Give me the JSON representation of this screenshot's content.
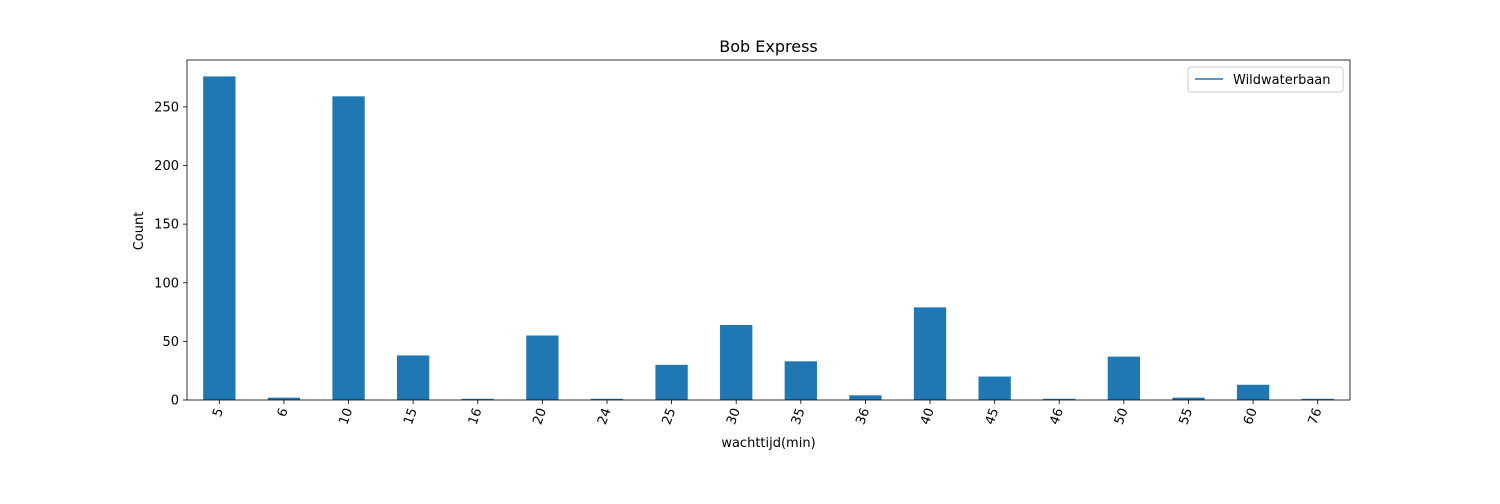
{
  "chart_data": {
    "type": "bar",
    "title": "Bob Express",
    "xlabel": "wachttijd(min)",
    "ylabel": "Count",
    "categories": [
      "5",
      "6",
      "10",
      "15",
      "16",
      "20",
      "24",
      "25",
      "30",
      "35",
      "36",
      "40",
      "45",
      "46",
      "50",
      "55",
      "60",
      "76"
    ],
    "series": [
      {
        "name": "Wildwaterbaan",
        "values": [
          276,
          2,
          259,
          38,
          1,
          55,
          1,
          30,
          64,
          33,
          4,
          79,
          20,
          1,
          37,
          2,
          13,
          1
        ],
        "color": "#1f77b4"
      }
    ],
    "ylim": [
      0,
      290
    ],
    "yticks": [
      0,
      50,
      100,
      150,
      200,
      250
    ],
    "grid": false,
    "legend_position": "top-right"
  }
}
